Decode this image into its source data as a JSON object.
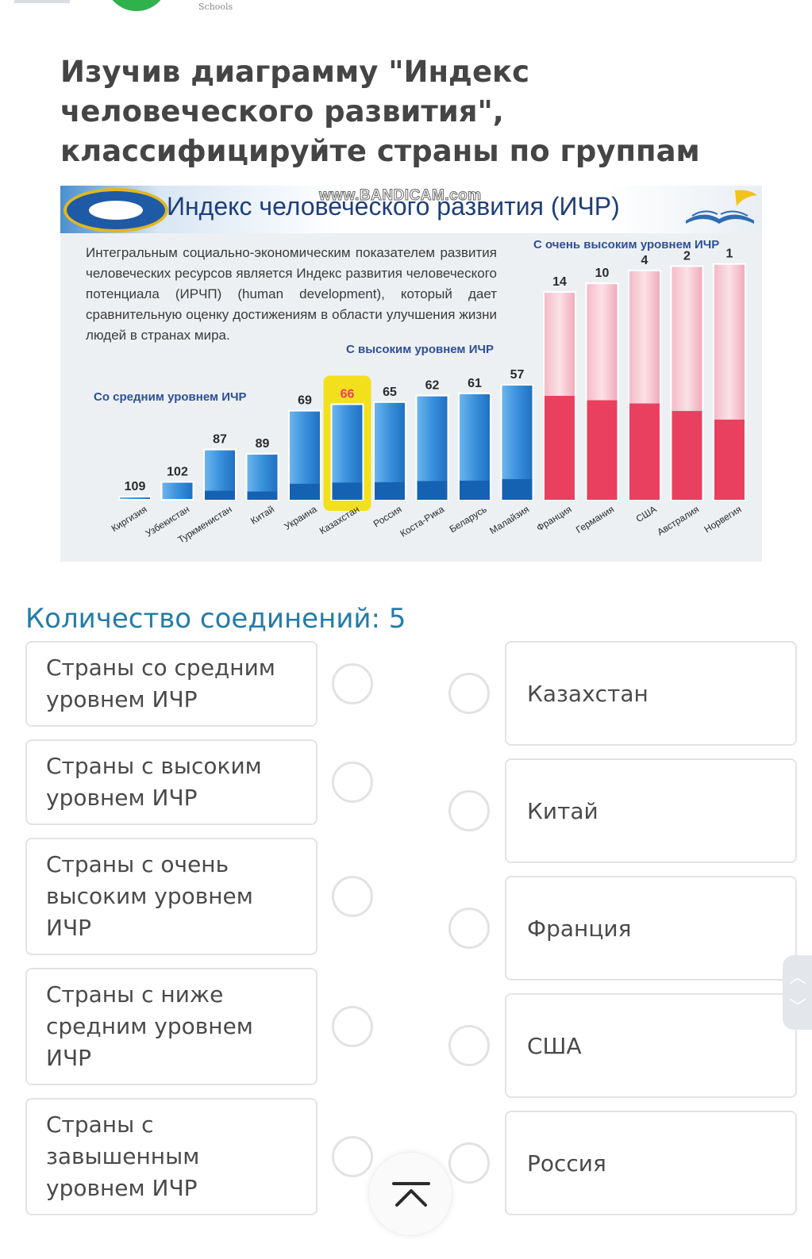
{
  "header": {
    "brand_text": "Schools"
  },
  "question": {
    "text": "Изучив диаграмму \"Индекс человеческого развития\", классифицируйте страны по группам"
  },
  "slide": {
    "title": "Индекс человеческого развития (ИЧР)",
    "watermark": "www.BANDICAM.com",
    "description": "Интегральным социально-экономическим показателем развития человеческих ресурсов является Индекс развития человеческого потенциала (ИРЧП) (human development), который дает сравнительную оценку достижениям в области улучшения жизни людей в странах мира.",
    "group_labels": {
      "medium": "Со средним уровнем ИЧР",
      "high": "С высоким уровнем ИЧР",
      "very_high": "С очень высоким уровнем ИЧР"
    }
  },
  "chart_data": {
    "type": "bar",
    "title": "Индекс человеческого развития (ИЧР)",
    "categories": [
      "Киргизия",
      "Узбекистан",
      "Туркменистан",
      "Китай",
      "Украина",
      "Казахстан",
      "Россия",
      "Коста-Рика",
      "Беларусь",
      "Малайзия",
      "Франция",
      "Германия",
      "США",
      "Австралия",
      "Норвегия"
    ],
    "series": [
      {
        "values": [
          109,
          102,
          87,
          89,
          69,
          66,
          65,
          62,
          61,
          57,
          14,
          10,
          4,
          2,
          1
        ]
      }
    ],
    "groups": [
      "medium",
      "medium",
      "medium",
      "medium",
      "medium",
      "medium",
      "high",
      "high",
      "high",
      "high",
      "very_high",
      "very_high",
      "very_high",
      "very_high",
      "very_high"
    ],
    "highlighted": "Казахстан",
    "colors": {
      "medium_high": "#2e7fd0",
      "very_high": "#e8405e",
      "highlight": "#f2e01c"
    },
    "legend": "none",
    "grid": false
  },
  "match": {
    "connections_label": "Количество соединений: 5",
    "left": [
      "Страны со средним уровнем ИЧР",
      "Страны с высоким уровнем ИЧР",
      "Страны с очень высоким уровнем ИЧР",
      "Страны с ниже средним уровнем ИЧР",
      "Страны с завышенным уровнем ИЧР"
    ],
    "right": [
      "Казахстан",
      "Китай",
      "Франция",
      "США",
      "Россия"
    ]
  },
  "icons": {
    "scroll_up": "chevron-up-icon",
    "scroll_down": "chevron-down-icon",
    "to_top": "scroll-to-top-icon"
  }
}
